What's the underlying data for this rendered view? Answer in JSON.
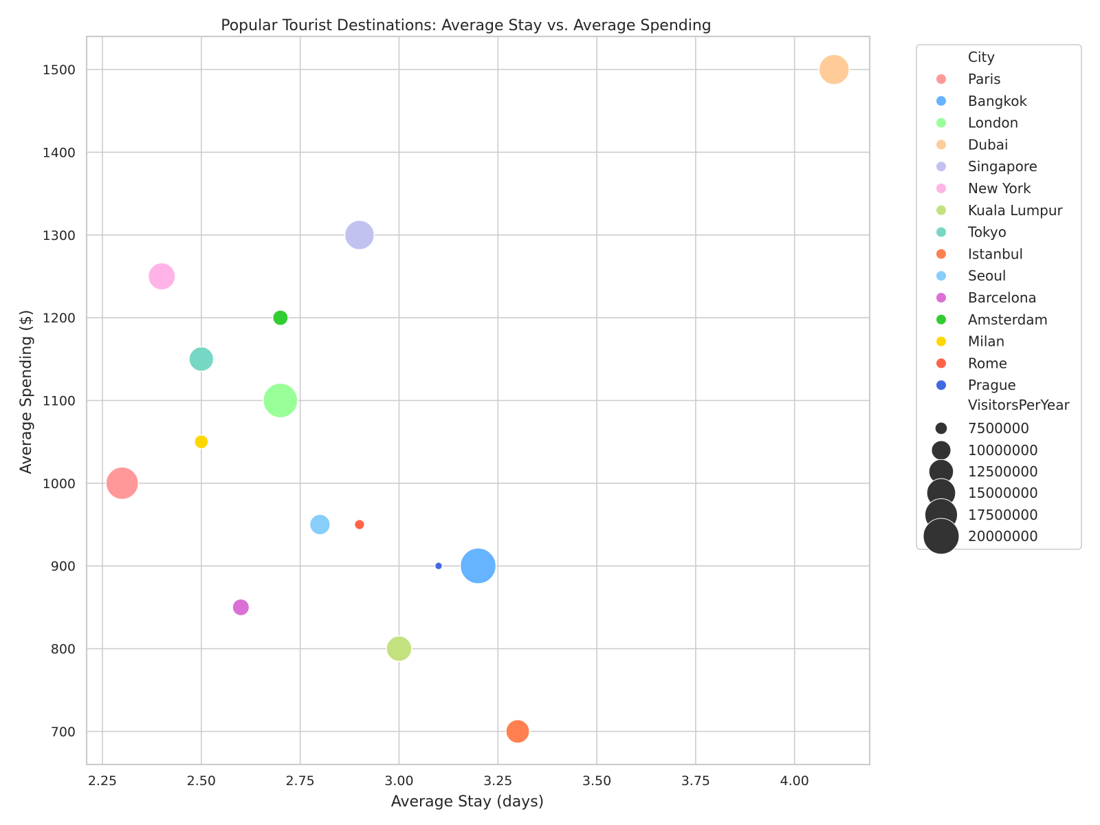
{
  "chart_data": {
    "type": "scatter",
    "title": "Popular Tourist Destinations: Average Stay vs. Average Spending",
    "xlabel": "Average Stay (days)",
    "ylabel": "Average Spending ($)",
    "xlim": [
      2.21,
      4.19
    ],
    "ylim": [
      660,
      1540
    ],
    "xticks": [
      2.25,
      2.5,
      2.75,
      3.0,
      3.25,
      3.5,
      3.75,
      4.0
    ],
    "xtick_labels": [
      "2.25",
      "2.50",
      "2.75",
      "3.00",
      "3.25",
      "3.50",
      "3.75",
      "4.00"
    ],
    "yticks": [
      700,
      800,
      900,
      1000,
      1100,
      1200,
      1300,
      1400,
      1500
    ],
    "ytick_labels": [
      "700",
      "800",
      "900",
      "1000",
      "1100",
      "1200",
      "1300",
      "1400",
      "1500"
    ],
    "grid": true,
    "legend_position": "outside-right",
    "legend_hue_title": "City",
    "legend_size_title": "VisitorsPerYear",
    "size_legend": [
      {
        "label": "7500000",
        "value": 7500000
      },
      {
        "label": "10000000",
        "value": 10000000
      },
      {
        "label": "12500000",
        "value": 12500000
      },
      {
        "label": "15000000",
        "value": 15000000
      },
      {
        "label": "17500000",
        "value": 17500000
      },
      {
        "label": "20000000",
        "value": 20000000
      }
    ],
    "points": [
      {
        "city": "Paris",
        "x": 2.3,
        "y": 1000,
        "visitors": 17500000,
        "color": "#ff9999"
      },
      {
        "city": "Bangkok",
        "x": 3.2,
        "y": 900,
        "visitors": 20000000,
        "color": "#66b3ff"
      },
      {
        "city": "London",
        "x": 2.7,
        "y": 1100,
        "visitors": 19000000,
        "color": "#99ff99"
      },
      {
        "city": "Dubai",
        "x": 4.1,
        "y": 1500,
        "visitors": 16000000,
        "color": "#ffcc99"
      },
      {
        "city": "Singapore",
        "x": 2.9,
        "y": 1300,
        "visitors": 15500000,
        "color": "#c2c2f0"
      },
      {
        "city": "New York",
        "x": 2.4,
        "y": 1250,
        "visitors": 14000000,
        "color": "#ffb3e6"
      },
      {
        "city": "Kuala Lumpur",
        "x": 3.0,
        "y": 800,
        "visitors": 13000000,
        "color": "#c4e17f"
      },
      {
        "city": "Tokyo",
        "x": 2.5,
        "y": 1150,
        "visitors": 12500000,
        "color": "#76d7c4"
      },
      {
        "city": "Istanbul",
        "x": 3.3,
        "y": 700,
        "visitors": 12000000,
        "color": "#ff7f50"
      },
      {
        "city": "Seoul",
        "x": 2.8,
        "y": 950,
        "visitors": 10500000,
        "color": "#87cefa"
      },
      {
        "city": "Barcelona",
        "x": 2.6,
        "y": 850,
        "visitors": 9000000,
        "color": "#da70d6"
      },
      {
        "city": "Amsterdam",
        "x": 2.7,
        "y": 1200,
        "visitors": 8500000,
        "color": "#32cd32"
      },
      {
        "city": "Milan",
        "x": 2.5,
        "y": 1050,
        "visitors": 8000000,
        "color": "#ffd700"
      },
      {
        "city": "Rome",
        "x": 2.9,
        "y": 950,
        "visitors": 7000000,
        "color": "#ff6347"
      },
      {
        "city": "Prague",
        "x": 3.1,
        "y": 900,
        "visitors": 6500000,
        "color": "#4169e1"
      }
    ]
  }
}
